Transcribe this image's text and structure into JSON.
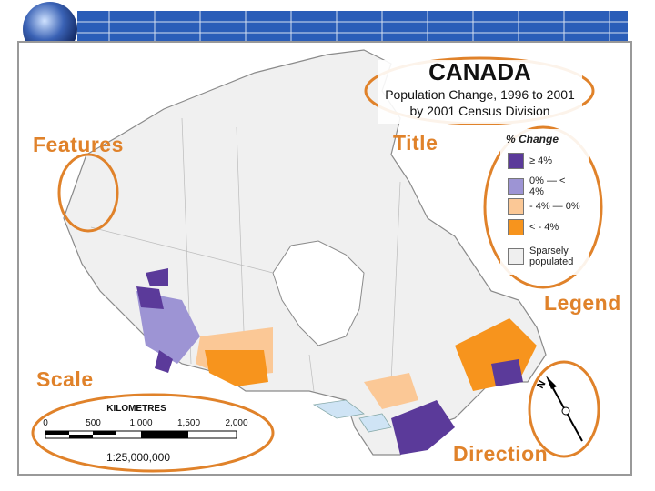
{
  "title": {
    "heading": "CANADA",
    "subtitle_line1": "Population Change, 1996 to 2001",
    "subtitle_line2": "by 2001 Census Division"
  },
  "legend": {
    "title": "% Change",
    "items": [
      {
        "label": "≥ 4%",
        "color": "#5b3a9a"
      },
      {
        "label": "0% — < 4%",
        "color": "#9d94d4"
      },
      {
        "label": "- 4% — 0%",
        "color": "#fbc896"
      },
      {
        "label": "< - 4%",
        "color": "#f7941d"
      },
      {
        "label": "Sparsely populated",
        "color": "#efefef"
      }
    ]
  },
  "scale": {
    "unit": "KILOMETRES",
    "labels": [
      "0",
      "500",
      "1,000",
      "1,500",
      "2,000"
    ],
    "ratio": "1:25,000,000"
  },
  "annotations": {
    "features": "Features",
    "title": "Title",
    "legend": "Legend",
    "scale": "Scale",
    "direction": "Direction"
  }
}
